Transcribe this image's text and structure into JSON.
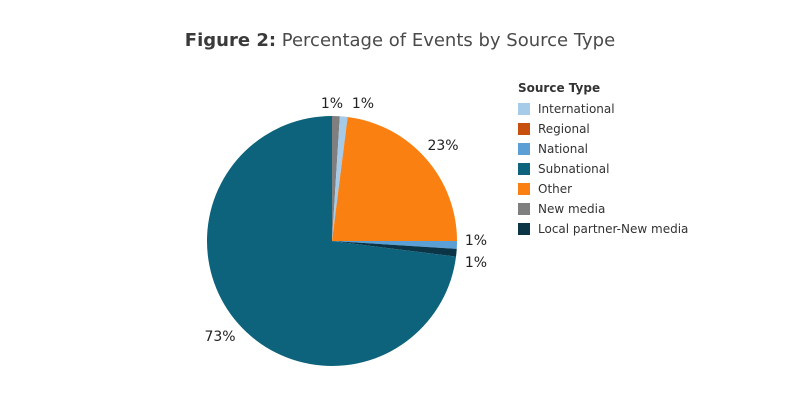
{
  "title_prefix": "Figure 2:",
  "title_text": " Percentage of Events by Source Type",
  "legend_title": "Source Type",
  "chart_data": {
    "type": "pie",
    "title": "Figure 2: Percentage of Events by Source Type",
    "legend_title": "Source Type",
    "legend_placement": "right",
    "categories": [
      "International",
      "Regional",
      "National",
      "Subnational",
      "Other",
      "New media",
      "Local partner-New media"
    ],
    "values": [
      1,
      0,
      1,
      73,
      23,
      1,
      1
    ],
    "labels": [
      "1%",
      "",
      "1%",
      "73%",
      "23%",
      "1%",
      "1%"
    ],
    "colors": [
      "#a6cbe8",
      "#c8500f",
      "#5b9fd4",
      "#0d637b",
      "#fa8011",
      "#7f7f7f",
      "#0b3547"
    ],
    "draw_order": [
      "New media",
      "International",
      "Other",
      "National",
      "Local partner-New media",
      "Subnational"
    ]
  }
}
